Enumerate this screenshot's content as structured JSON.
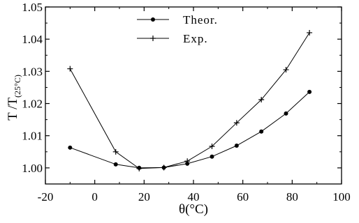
{
  "chart_data": {
    "type": "line",
    "title": "",
    "xlabel": "θ(°C)",
    "ylabel": {
      "main": "T /T",
      "subscript": "(25°C)"
    },
    "xlim": [
      -20,
      100
    ],
    "ylim": [
      0.995,
      1.05
    ],
    "x_ticks": [
      -20,
      0,
      20,
      40,
      60,
      80,
      100
    ],
    "x_tick_labels": [
      "-20",
      "0",
      "20",
      "40",
      "60",
      "80",
      "100"
    ],
    "y_ticks": [
      1.0,
      1.01,
      1.02,
      1.03,
      1.04,
      1.05
    ],
    "y_tick_labels": [
      "1.00",
      "1.01",
      "1.02",
      "1.03",
      "1.04",
      "1.05"
    ],
    "grid": false,
    "legend_position": "top-center",
    "series": [
      {
        "name": "Theor.",
        "marker": "circle",
        "x": [
          -10,
          8.5,
          18,
          28,
          37.5,
          47.5,
          57.5,
          67.5,
          77.5,
          87
        ],
        "values": [
          1.0063,
          1.0011,
          1.0,
          1.0001,
          1.0013,
          1.0035,
          1.0069,
          1.0113,
          1.0169,
          1.0236
        ]
      },
      {
        "name": "Exp.",
        "marker": "plus",
        "x": [
          -10,
          8.5,
          18,
          28,
          37.5,
          47.5,
          57.5,
          67.5,
          77.5,
          87
        ],
        "values": [
          1.0308,
          1.005,
          0.9998,
          1.0001,
          1.0021,
          1.0067,
          1.014,
          1.0212,
          1.0305,
          1.042
        ]
      }
    ]
  }
}
